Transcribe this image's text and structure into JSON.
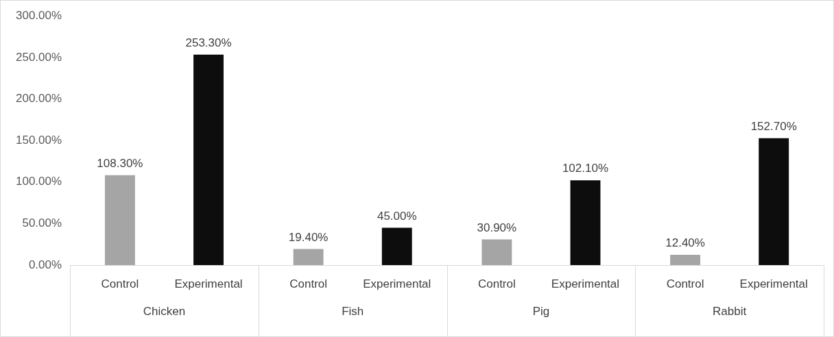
{
  "chart_data": {
    "type": "bar",
    "categories": [
      "Chicken",
      "Fish",
      "Pig",
      "Rabbit"
    ],
    "series": [
      {
        "name": "Control",
        "color": "#a5a5a5",
        "values": [
          108.3,
          19.4,
          30.9,
          12.4
        ],
        "value_labels": [
          "108.30%",
          "19.40%",
          "30.90%",
          "12.40%"
        ]
      },
      {
        "name": "Experimental",
        "color": "#0d0d0d",
        "values": [
          253.3,
          45.0,
          102.1,
          152.7
        ],
        "value_labels": [
          "253.30%",
          "45.00%",
          "102.10%",
          "152.70%"
        ]
      }
    ],
    "ylim": [
      0,
      300
    ],
    "yticks": [
      {
        "value": 0,
        "label": "0.00%"
      },
      {
        "value": 50,
        "label": "50.00%"
      },
      {
        "value": 100,
        "label": "100.00%"
      },
      {
        "value": 150,
        "label": "150.00%"
      },
      {
        "value": 200,
        "label": "200.00%"
      },
      {
        "value": 250,
        "label": "250.00%"
      },
      {
        "value": 300,
        "label": "300.00%"
      }
    ],
    "grid": false,
    "legend": false
  }
}
